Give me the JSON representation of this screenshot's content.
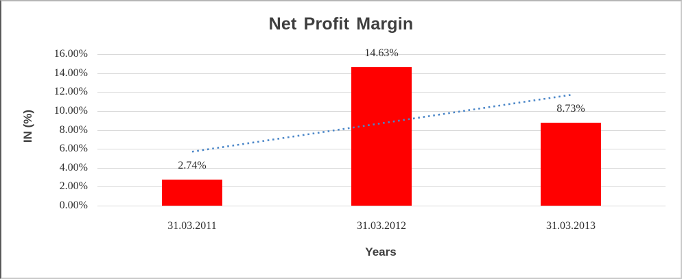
{
  "chart_data": {
    "type": "bar",
    "title": "Net Profit Margin",
    "xlabel": "Years",
    "ylabel": "IN (%)",
    "categories": [
      "31.03.2011",
      "31.03.2012",
      "31.03.2013"
    ],
    "values": [
      2.74,
      14.63,
      8.73
    ],
    "data_labels": [
      "2.74%",
      "14.63%",
      "8.73%"
    ],
    "ylim": [
      0,
      16
    ],
    "ytick_step": 2,
    "ytick_labels": [
      "0.00%",
      "2.00%",
      "4.00%",
      "6.00%",
      "8.00%",
      "10.00%",
      "12.00%",
      "14.00%",
      "16.00%"
    ],
    "grid": true,
    "legend": "none",
    "bar_color": "#ff0000",
    "gridline_color": "#d9d9d9",
    "trendline": {
      "type": "linear",
      "style": "dotted",
      "color": "#4a86c8",
      "start_value": 5.7,
      "end_value": 11.7
    }
  }
}
